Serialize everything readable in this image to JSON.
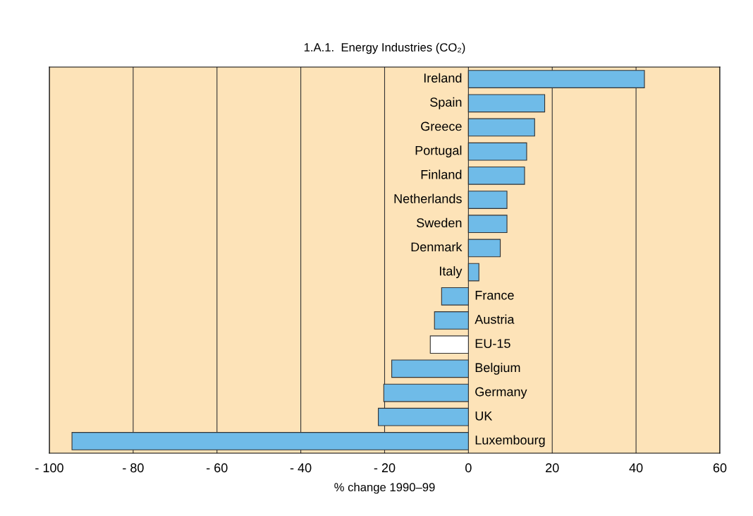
{
  "chart_data": {
    "type": "bar",
    "orientation": "horizontal",
    "title": "1.A.1.  Energy Industries (CO₂)",
    "xlabel": "% change 1990–99",
    "categories": [
      "Ireland",
      "Spain",
      "Greece",
      "Portugal",
      "Finland",
      "Netherlands",
      "Sweden",
      "Denmark",
      "Italy",
      "France",
      "Austria",
      "EU-15",
      "Belgium",
      "Germany",
      "UK",
      "Luxembourg"
    ],
    "values": [
      42.0,
      18.2,
      15.8,
      13.9,
      13.4,
      9.2,
      9.2,
      7.6,
      2.5,
      -6.4,
      -8.1,
      -9.1,
      -18.3,
      -20.2,
      -21.5,
      -94.6
    ],
    "colors": [
      "#6fbbe8",
      "#6fbbe8",
      "#6fbbe8",
      "#6fbbe8",
      "#6fbbe8",
      "#6fbbe8",
      "#6fbbe8",
      "#6fbbe8",
      "#6fbbe8",
      "#6fbbe8",
      "#6fbbe8",
      "#ffffff",
      "#6fbbe8",
      "#6fbbe8",
      "#6fbbe8",
      "#6fbbe8"
    ],
    "xlim": [
      -100,
      60
    ],
    "xticks": [
      {
        "value": -100,
        "label": "- 100"
      },
      {
        "value": -80,
        "label": "- 80"
      },
      {
        "value": -60,
        "label": "- 60"
      },
      {
        "value": -40,
        "label": "- 40"
      },
      {
        "value": -20,
        "label": "- 20"
      },
      0,
      20,
      40,
      60
    ],
    "grid": "x"
  }
}
